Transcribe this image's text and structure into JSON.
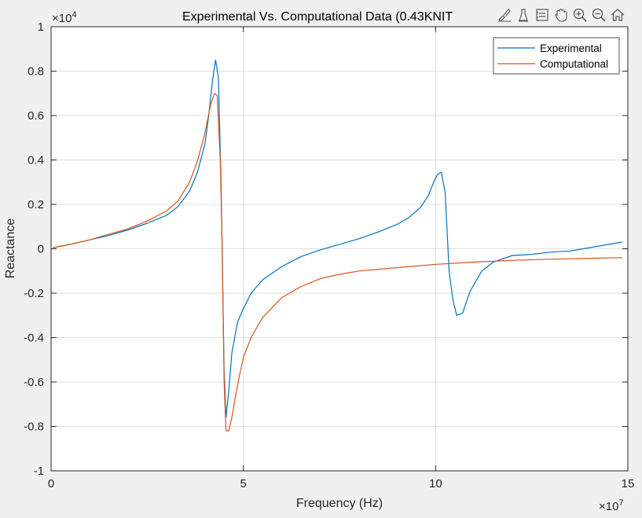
{
  "chart_data": {
    "type": "line",
    "title": "Experimental Vs. Computational Data (0.43KNIT",
    "xlabel": "Frequency (Hz)",
    "ylabel": "Reactance",
    "x_exponent_label": "×10",
    "x_exponent_power": "7",
    "y_exponent_label": "×10",
    "y_exponent_power": "4",
    "xlim": [
      0,
      15
    ],
    "ylim": [
      -1,
      1
    ],
    "x_scale_note": "x values in units of 1e7 Hz",
    "y_scale_note": "y values in units of 1e4",
    "xticks": [
      0,
      5,
      10,
      15
    ],
    "xtick_labels": [
      "0",
      "5",
      "10",
      "15"
    ],
    "yticks": [
      -1,
      -0.8,
      -0.6,
      -0.4,
      -0.2,
      0,
      0.2,
      0.4,
      0.6,
      0.8,
      1
    ],
    "ytick_labels": [
      "-1",
      "-0.8",
      "-0.6",
      "-0.4",
      "-0.2",
      "0",
      "0.2",
      "0.4",
      "0.6",
      "0.8",
      "1"
    ],
    "grid": true,
    "legend_position": "top-right",
    "series": [
      {
        "name": "Experimental",
        "color": "#0072BD",
        "x": [
          0.05,
          0.5,
          1.0,
          1.5,
          2.0,
          2.5,
          3.0,
          3.3,
          3.6,
          3.8,
          4.0,
          4.1,
          4.2,
          4.28,
          4.35,
          4.42,
          4.5,
          4.55,
          4.62,
          4.7,
          4.85,
          5.0,
          5.2,
          5.5,
          6.0,
          6.5,
          7.0,
          7.5,
          8.0,
          8.5,
          9.0,
          9.3,
          9.6,
          9.8,
          9.95,
          10.05,
          10.15,
          10.25,
          10.35,
          10.45,
          10.55,
          10.7,
          10.9,
          11.2,
          11.5,
          12.0,
          12.5,
          13.0,
          13.5,
          14.0,
          14.5,
          14.85
        ],
        "y": [
          0.005,
          0.02,
          0.04,
          0.06,
          0.085,
          0.115,
          0.15,
          0.19,
          0.26,
          0.34,
          0.47,
          0.6,
          0.76,
          0.85,
          0.77,
          0.3,
          -0.55,
          -0.76,
          -0.64,
          -0.47,
          -0.33,
          -0.27,
          -0.2,
          -0.14,
          -0.08,
          -0.035,
          -0.005,
          0.02,
          0.045,
          0.075,
          0.11,
          0.14,
          0.185,
          0.235,
          0.3,
          0.335,
          0.345,
          0.25,
          -0.1,
          -0.23,
          -0.3,
          -0.29,
          -0.19,
          -0.1,
          -0.06,
          -0.03,
          -0.025,
          -0.015,
          -0.01,
          0.005,
          0.02,
          0.03
        ]
      },
      {
        "name": "Computational",
        "color": "#D95319",
        "x": [
          0.05,
          0.5,
          1.0,
          1.5,
          2.0,
          2.5,
          3.0,
          3.3,
          3.6,
          3.8,
          4.0,
          4.15,
          4.25,
          4.32,
          4.4,
          4.45,
          4.5,
          4.55,
          4.62,
          4.7,
          4.8,
          4.9,
          5.0,
          5.2,
          5.5,
          6.0,
          6.5,
          7.0,
          7.5,
          8.0,
          9.0,
          10.0,
          11.0,
          12.0,
          13.0,
          14.0,
          14.85
        ],
        "y": [
          0.005,
          0.02,
          0.04,
          0.065,
          0.09,
          0.125,
          0.17,
          0.215,
          0.3,
          0.39,
          0.52,
          0.65,
          0.7,
          0.69,
          0.4,
          0.0,
          -0.6,
          -0.82,
          -0.82,
          -0.76,
          -0.66,
          -0.57,
          -0.49,
          -0.4,
          -0.31,
          -0.22,
          -0.17,
          -0.135,
          -0.115,
          -0.1,
          -0.085,
          -0.07,
          -0.06,
          -0.052,
          -0.047,
          -0.043,
          -0.04
        ]
      }
    ]
  },
  "toolbar": {
    "icons": [
      "brush-icon",
      "data-tips-icon",
      "legend-icon",
      "pan-icon",
      "zoom-in-icon",
      "zoom-out-icon",
      "home-icon"
    ]
  }
}
